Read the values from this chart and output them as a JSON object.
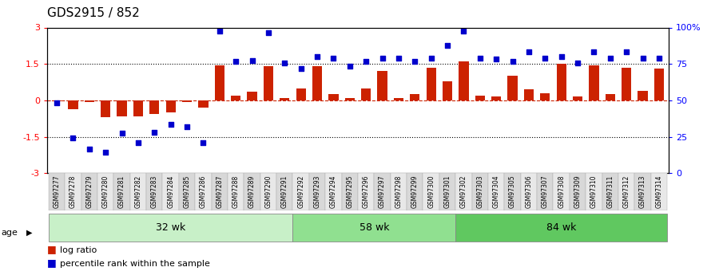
{
  "title": "GDS2915 / 852",
  "samples": [
    "GSM97277",
    "GSM97278",
    "GSM97279",
    "GSM97280",
    "GSM97281",
    "GSM97282",
    "GSM97283",
    "GSM97284",
    "GSM97285",
    "GSM97286",
    "GSM97287",
    "GSM97288",
    "GSM97289",
    "GSM97290",
    "GSM97291",
    "GSM97292",
    "GSM97293",
    "GSM97294",
    "GSM97295",
    "GSM97296",
    "GSM97297",
    "GSM97298",
    "GSM97299",
    "GSM97300",
    "GSM97301",
    "GSM97302",
    "GSM97303",
    "GSM97304",
    "GSM97305",
    "GSM97306",
    "GSM97307",
    "GSM97308",
    "GSM97309",
    "GSM97310",
    "GSM97311",
    "GSM97312",
    "GSM97313",
    "GSM97314"
  ],
  "log_ratio": [
    -0.05,
    -0.35,
    -0.08,
    -0.7,
    -0.65,
    -0.65,
    -0.55,
    -0.5,
    -0.08,
    -0.3,
    1.45,
    0.2,
    0.35,
    1.4,
    0.1,
    0.5,
    1.4,
    0.25,
    0.1,
    0.5,
    1.2,
    0.1,
    0.25,
    1.35,
    0.8,
    1.6,
    0.2,
    0.15,
    1.0,
    0.45,
    0.3,
    1.5,
    0.15,
    1.45,
    0.25,
    1.35,
    0.4,
    1.3
  ],
  "percentile": [
    -0.1,
    -1.55,
    -2.0,
    -2.15,
    -1.35,
    -1.75,
    -1.3,
    -1.0,
    -1.1,
    -1.75,
    2.85,
    1.6,
    1.65,
    2.8,
    1.55,
    1.3,
    1.8,
    1.75,
    1.4,
    1.6,
    1.75,
    1.75,
    1.6,
    1.75,
    2.25,
    2.85,
    1.75,
    1.7,
    1.6,
    2.0,
    1.75,
    1.8,
    1.55,
    2.0,
    1.75,
    2.0,
    1.75,
    1.75
  ],
  "groups": [
    {
      "label": "32 wk",
      "start": 0,
      "end": 15,
      "color": "#c8f0c8"
    },
    {
      "label": "58 wk",
      "start": 15,
      "end": 25,
      "color": "#90e090"
    },
    {
      "label": "84 wk",
      "start": 25,
      "end": 38,
      "color": "#60c860"
    }
  ],
  "bar_color": "#cc2200",
  "dot_color": "#0000cc",
  "ylim": [
    -3,
    3
  ],
  "y2lim": [
    0,
    100
  ],
  "yticks": [
    -3,
    -1.5,
    0,
    1.5,
    3
  ],
  "ytick_labels": [
    "-3",
    "-1.5",
    "0",
    "1.5",
    "3"
  ],
  "y2ticks": [
    0,
    25,
    50,
    75,
    100
  ],
  "y2tick_labels": [
    "0",
    "25",
    "50",
    "75",
    "100%"
  ],
  "dotted_lines": [
    -1.5,
    1.5
  ],
  "zero_line_color": "#cc2200",
  "background_color": "#ffffff",
  "title_fontsize": 11,
  "legend_items": [
    {
      "color": "#cc2200",
      "label": "log ratio"
    },
    {
      "color": "#0000cc",
      "label": "percentile rank within the sample"
    }
  ]
}
